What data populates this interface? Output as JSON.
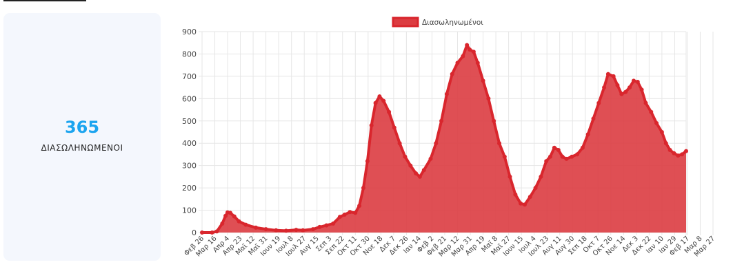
{
  "stat": {
    "value": "365",
    "label": "ΔΙΑΣΩΛΗΝΩΜΕΝΟΙ"
  },
  "colors": {
    "accent": "#1ba4ef",
    "line": "#d9262d",
    "fill": "#dc3c41",
    "grid": "#e6e6e6",
    "axis_text": "#444444"
  },
  "chart_data": {
    "type": "area",
    "title": "",
    "xlabel": "",
    "ylabel": "",
    "legend": {
      "label": "Διασωληνωμένοι",
      "position": "top"
    },
    "ylim": [
      0,
      900
    ],
    "yticks": [
      0,
      100,
      200,
      300,
      400,
      500,
      600,
      700,
      800,
      900
    ],
    "xticks": [
      "Φεβ 26",
      "Μαρ 16",
      "Απρ 4",
      "Απρ 23",
      "Μαϊ 12",
      "Μαϊ 31",
      "Ιουν 19",
      "Ιουλ 8",
      "Ιουλ 27",
      "Αυγ 15",
      "Σεπ 3",
      "Σεπ 22",
      "Οκτ 11",
      "Οκτ 30",
      "Νοε 18",
      "Δεκ 7",
      "Δεκ 26",
      "Ιαν 14",
      "Φεβ 2",
      "Φεβ 21",
      "Μαρ 12",
      "Μαρ 31",
      "Απρ 19",
      "Μαϊ 8",
      "Μαϊ 27",
      "Ιουν 15",
      "Ιουλ 4",
      "Ιουλ 23",
      "Αυγ 11",
      "Αυγ 30",
      "Σεπ 18",
      "Οκτ 7",
      "Οκτ 26",
      "Νοε 14",
      "Δεκ 3",
      "Δεκ 22",
      "Ιαν 10",
      "Ιαν 29",
      "Φεβ 17",
      "Μαρ 8",
      "Μαρ 27"
    ],
    "grid": true,
    "x_step_days": 19,
    "keypoints": [
      [
        0,
        0
      ],
      [
        15,
        0
      ],
      [
        22,
        5
      ],
      [
        30,
        40
      ],
      [
        35,
        75
      ],
      [
        38,
        90
      ],
      [
        42,
        88
      ],
      [
        48,
        72
      ],
      [
        55,
        50
      ],
      [
        65,
        35
      ],
      [
        80,
        22
      ],
      [
        95,
        15
      ],
      [
        110,
        10
      ],
      [
        125,
        8
      ],
      [
        140,
        12
      ],
      [
        150,
        10
      ],
      [
        165,
        15
      ],
      [
        175,
        25
      ],
      [
        185,
        32
      ],
      [
        195,
        40
      ],
      [
        205,
        70
      ],
      [
        212,
        80
      ],
      [
        220,
        92
      ],
      [
        228,
        88
      ],
      [
        234,
        120
      ],
      [
        240,
        200
      ],
      [
        246,
        320
      ],
      [
        252,
        480
      ],
      [
        258,
        580
      ],
      [
        264,
        610
      ],
      [
        270,
        590
      ],
      [
        278,
        540
      ],
      [
        286,
        470
      ],
      [
        294,
        400
      ],
      [
        302,
        340
      ],
      [
        310,
        300
      ],
      [
        318,
        265
      ],
      [
        324,
        250
      ],
      [
        330,
        280
      ],
      [
        340,
        330
      ],
      [
        348,
        400
      ],
      [
        356,
        500
      ],
      [
        364,
        620
      ],
      [
        372,
        710
      ],
      [
        380,
        760
      ],
      [
        388,
        790
      ],
      [
        394,
        840
      ],
      [
        398,
        820
      ],
      [
        404,
        810
      ],
      [
        410,
        760
      ],
      [
        418,
        680
      ],
      [
        426,
        600
      ],
      [
        434,
        500
      ],
      [
        442,
        400
      ],
      [
        450,
        340
      ],
      [
        458,
        250
      ],
      [
        466,
        170
      ],
      [
        474,
        130
      ],
      [
        480,
        125
      ],
      [
        488,
        160
      ],
      [
        496,
        200
      ],
      [
        504,
        250
      ],
      [
        512,
        320
      ],
      [
        518,
        340
      ],
      [
        524,
        380
      ],
      [
        530,
        370
      ],
      [
        536,
        340
      ],
      [
        542,
        330
      ],
      [
        550,
        340
      ],
      [
        558,
        350
      ],
      [
        566,
        380
      ],
      [
        574,
        440
      ],
      [
        582,
        510
      ],
      [
        590,
        580
      ],
      [
        598,
        650
      ],
      [
        604,
        710
      ],
      [
        612,
        700
      ],
      [
        618,
        660
      ],
      [
        624,
        620
      ],
      [
        630,
        630
      ],
      [
        636,
        650
      ],
      [
        642,
        680
      ],
      [
        648,
        675
      ],
      [
        654,
        640
      ],
      [
        660,
        580
      ],
      [
        668,
        540
      ],
      [
        676,
        490
      ],
      [
        684,
        450
      ],
      [
        690,
        400
      ],
      [
        696,
        370
      ],
      [
        702,
        355
      ],
      [
        708,
        345
      ],
      [
        714,
        350
      ],
      [
        720,
        365
      ]
    ]
  }
}
